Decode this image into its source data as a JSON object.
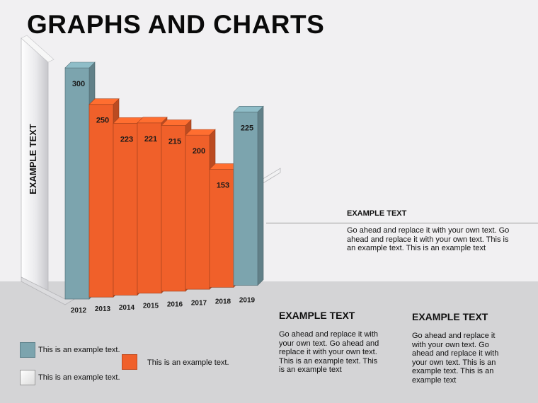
{
  "title": "GRAPHS AND CHARTS",
  "chart_data": {
    "type": "bar",
    "categories": [
      "2012",
      "2013",
      "2014",
      "2015",
      "2016",
      "2017",
      "2018",
      "2019"
    ],
    "values": [
      300,
      250,
      223,
      221,
      215,
      200,
      153,
      225
    ],
    "data_labels": [
      "300",
      "250",
      "223",
      "221",
      "215",
      "200",
      "153",
      "225"
    ],
    "bar_colors": [
      "#7ca4ae",
      "#f0602a",
      "#f0602a",
      "#f0602a",
      "#f0602a",
      "#f0602a",
      "#f0602a",
      "#7ca4ae"
    ],
    "ylabel": "EXAMPLE TEXT",
    "xlabel": "",
    "ylim": [
      0,
      300
    ],
    "grid": false,
    "three_d": true
  },
  "colors": {
    "teal": "#7ca4ae",
    "orange": "#f0602a"
  },
  "callouts": [
    {
      "heading": "EXAMPLE TEXT",
      "body": "Go ahead and replace it with your own text. Go ahead and replace it with your own text. This is an example text. This is an example text"
    },
    {
      "heading": "EXAMPLE TEXT",
      "body": "Go ahead and replace it with your own text. Go ahead and replace it with your own text. This is an example text. This is an example text"
    },
    {
      "heading": "EXAMPLE TEXT",
      "body": "Go ahead and replace it with your own text. Go ahead and replace it with your own text. This is an example text. This is an example text"
    }
  ],
  "legend": [
    {
      "label": "This is an example text.",
      "color": "#7ca4ae"
    },
    {
      "label": "This is an example text.",
      "color": "#f0602a"
    },
    {
      "label": "This is an example text.",
      "color": "#f4f4f4"
    }
  ]
}
